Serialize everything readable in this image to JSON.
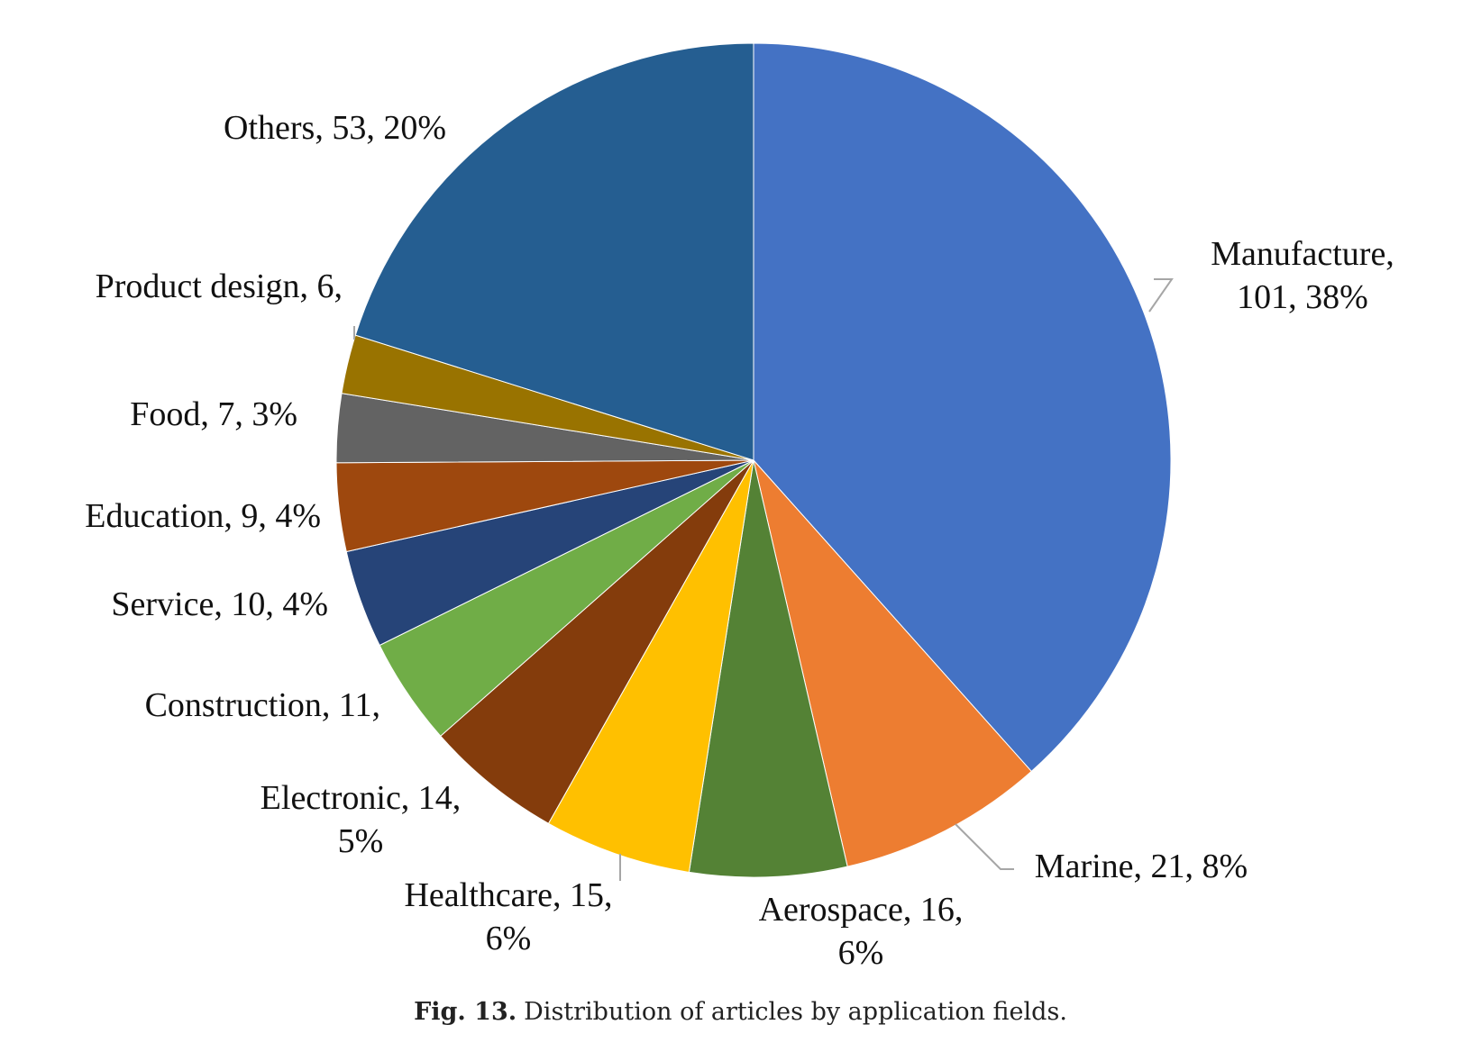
{
  "caption": {
    "label": "Fig. 13.",
    "text": "Distribution of articles by application fields."
  },
  "chart_data": {
    "type": "pie",
    "title": "",
    "start_angle_deg": 0,
    "direction": "clockwise",
    "slices": [
      {
        "name": "Manufacture",
        "value": 101,
        "percent_label": "38%",
        "color": "#4472C4",
        "label_lines": [
          "Manufacture,",
          "101, 38%"
        ]
      },
      {
        "name": "Marine",
        "value": 21,
        "percent_label": "8%",
        "color": "#ED7D31",
        "label_lines": [
          "Marine, 21, 8%"
        ]
      },
      {
        "name": "Aerospace",
        "value": 16,
        "percent_label": "6%",
        "color": "#548235",
        "label_lines": [
          "Aerospace, 16,",
          "6%"
        ]
      },
      {
        "name": "Healthcare",
        "value": 15,
        "percent_label": "6%",
        "color": "#FFC000",
        "label_lines": [
          "Healthcare, 15,",
          "6%"
        ]
      },
      {
        "name": "Electronic",
        "value": 14,
        "percent_label": "5%",
        "color": "#843C0C",
        "label_lines": [
          "Electronic, 14,",
          "5%"
        ]
      },
      {
        "name": "Construction",
        "value": 11,
        "percent_label": "",
        "color": "#70AD47",
        "label_lines": [
          "Construction, 11,"
        ]
      },
      {
        "name": "Service",
        "value": 10,
        "percent_label": "4%",
        "color": "#264478",
        "label_lines": [
          "Service, 10, 4%"
        ]
      },
      {
        "name": "Education",
        "value": 9,
        "percent_label": "4%",
        "color": "#9E480E",
        "label_lines": [
          "Education, 9, 4%"
        ]
      },
      {
        "name": "Food",
        "value": 7,
        "percent_label": "3%",
        "color": "#636363",
        "label_lines": [
          "Food, 7, 3%"
        ]
      },
      {
        "name": "Product design",
        "value": 6,
        "percent_label": "",
        "color": "#997300",
        "label_lines": [
          "Product design, 6,"
        ]
      },
      {
        "name": "Others",
        "value": 53,
        "percent_label": "20%",
        "color": "#255E91",
        "label_lines": [
          "Others, 53, 20%"
        ]
      }
    ]
  }
}
